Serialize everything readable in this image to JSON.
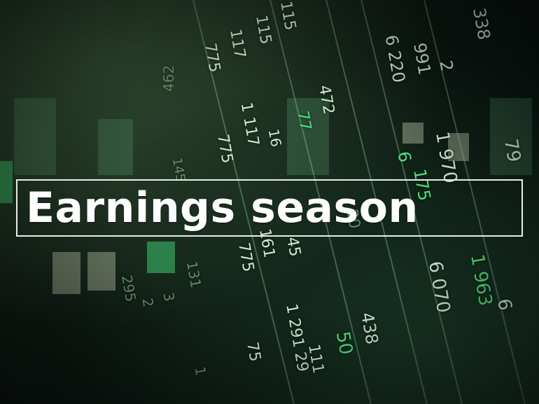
{
  "search": {
    "value": "Earnings season",
    "button_icon": "search-icon"
  },
  "background_numbers": {
    "left_bleed": [
      "462",
      "145",
      "131",
      "295",
      "2",
      "3",
      "1"
    ],
    "column_a": [
      "115",
      "115",
      "117",
      "775",
      "1 117",
      "775",
      "16"
    ],
    "column_b": [
      "472",
      "77",
      "20",
      "161",
      "775",
      "45",
      "1 291 29",
      "75"
    ],
    "column_c": [
      "6 220",
      "991",
      "2",
      "6",
      "175",
      "438",
      "111",
      "50"
    ],
    "column_d": [
      "338",
      "1 970",
      "79",
      "6 070",
      "1 963",
      "6"
    ]
  },
  "colors": {
    "text_primary": "#ffffff",
    "border": "#e8ece8",
    "button_bg": "#ffffff",
    "accent_green": "#4fe07d"
  }
}
